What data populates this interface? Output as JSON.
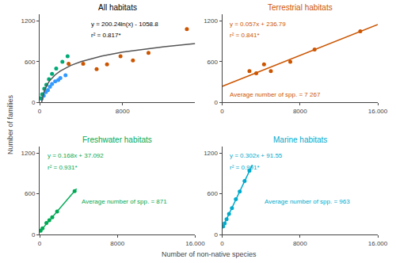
{
  "chart_data": [
    {
      "type": "scatter",
      "title": "All habitats",
      "color": "black",
      "annotations": [
        "y = 200.24ln(x) - 1058.8",
        "r² = 0.817*"
      ],
      "series": [
        {
          "type": "scatter",
          "color": "#CC5500",
          "x": [
            2800,
            4200,
            5500,
            6500,
            7800,
            9000,
            10500,
            14200
          ],
          "values": [
            570,
            570,
            490,
            560,
            680,
            620,
            730,
            1080
          ]
        },
        {
          "type": "scatter",
          "color": "#3399FF",
          "x": [
            200,
            400,
            600,
            800,
            1000,
            1200,
            1500,
            1800,
            2000,
            2500
          ],
          "values": [
            55,
            100,
            150,
            180,
            230,
            270,
            310,
            330,
            360,
            400
          ]
        },
        {
          "type": "scatter",
          "color": "#00AA77",
          "x": [
            100,
            250,
            450,
            650,
            900,
            1200,
            1600,
            2200,
            2700
          ],
          "values": [
            60,
            120,
            200,
            260,
            340,
            420,
            500,
            600,
            680
          ]
        },
        {
          "type": "line",
          "color": "#555555",
          "x": [
            200,
            250,
            300,
            400,
            500,
            750,
            1000,
            1500,
            2000,
            3000,
            4000,
            5000,
            6000,
            8000,
            10000,
            12000,
            15000
          ],
          "values": [
            2.14,
            46.82,
            83.33,
            140.93,
            185.61,
            266.8,
            324.41,
            405.6,
            463.2,
            544.4,
            602,
            646.68,
            683.19,
            740.8,
            785.48,
            821.99,
            866.67
          ]
        }
      ],
      "xlim": [
        0,
        15000
      ],
      "xticks": [
        0,
        8000
      ],
      "ylim": [
        0,
        1300
      ],
      "yticks": [
        0,
        600,
        1200
      ],
      "grid": false
    },
    {
      "type": "scatter",
      "title": "Terrestrial habitats",
      "color": "#CC5500",
      "annotations": [
        "y = 0.057x + 236.79",
        "r² = 0.841*",
        "Average number of spp. = 7 267"
      ],
      "series": [
        {
          "type": "scatter",
          "x": [
            2800,
            3500,
            4300,
            5000,
            7000,
            9500,
            14200
          ],
          "values": [
            460,
            430,
            560,
            460,
            600,
            780,
            1050
          ]
        },
        {
          "type": "line",
          "x": [
            0,
            16000
          ],
          "values": [
            236.79,
            1148.79
          ]
        }
      ],
      "xlim": [
        0,
        16000
      ],
      "xticks": [
        0,
        8000,
        {
          "value": 16000,
          "label": "16.000"
        }
      ],
      "ylim": [
        0,
        1300
      ],
      "yticks": [
        0,
        600,
        1200
      ],
      "grid": false
    },
    {
      "type": "scatter",
      "title": "Freshwater habitats",
      "color": "#00AA55",
      "annotations": [
        "y = 0.168x + 37.092",
        "r² = 0.931*",
        "Average number of spp. = 871"
      ],
      "series": [
        {
          "type": "scatter",
          "x": [
            100,
            300,
            700,
            1000,
            1300,
            1800,
            3600
          ],
          "values": [
            55,
            90,
            170,
            210,
            255,
            340,
            640
          ]
        },
        {
          "type": "line",
          "x": [
            0,
            3800
          ],
          "values": [
            37.092,
            675.492
          ]
        }
      ],
      "xlim": [
        0,
        16000
      ],
      "xticks": [
        0,
        8000,
        {
          "value": 16000,
          "label": "16.000"
        }
      ],
      "ylim": [
        0,
        1300
      ],
      "yticks": [
        0,
        600,
        1200
      ],
      "grid": false
    },
    {
      "type": "scatter",
      "title": "Marine habitats",
      "color": "#00AACC",
      "annotations": [
        "y = 0.302x + 91.55",
        "r² = 0.991*",
        "Average number of spp. = 963"
      ],
      "series": [
        {
          "type": "scatter",
          "x": [
            100,
            250,
            450,
            700,
            1000,
            1400,
            1800,
            2300,
            2800
          ],
          "values": [
            120,
            165,
            225,
            305,
            390,
            520,
            635,
            790,
            940
          ]
        },
        {
          "type": "line",
          "x": [
            0,
            3100
          ],
          "values": [
            91.55,
            1027.75
          ]
        }
      ],
      "xlim": [
        0,
        16000
      ],
      "xticks": [
        0,
        8000,
        {
          "value": 16000,
          "label": "16.000"
        }
      ],
      "ylim": [
        0,
        1300
      ],
      "yticks": [
        0,
        600,
        1200
      ],
      "grid": false
    }
  ],
  "xlabel": "Number of non-native species",
  "ylabel": "Number of families"
}
